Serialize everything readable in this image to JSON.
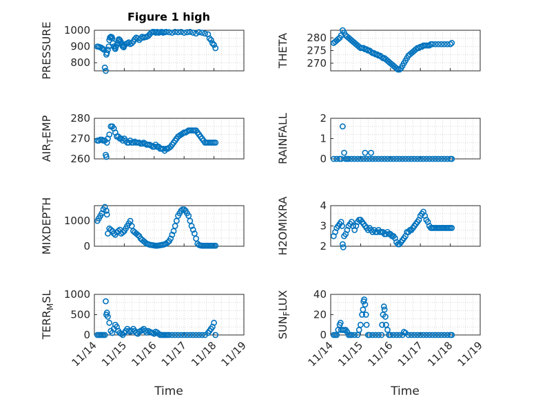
{
  "figure": {
    "title": "Figure 1 high",
    "xlabel": "Time",
    "marker_color": "#0072bd"
  },
  "chart_data": [
    {
      "type": "scatter",
      "ylabel": "PRESSURE",
      "ylabel_sub": "",
      "ylabel_post": "",
      "xlim": [
        0,
        5
      ],
      "ylim": [
        750,
        1000
      ],
      "yticks": [
        800,
        900,
        1000
      ],
      "xticks": [],
      "xtick_labels": [],
      "x": [
        0.1,
        0.15,
        0.2,
        0.25,
        0.28,
        0.32,
        0.35,
        0.38,
        0.4,
        0.42,
        0.45,
        0.48,
        0.5,
        0.52,
        0.55,
        0.58,
        0.6,
        0.62,
        0.65,
        0.68,
        0.7,
        0.72,
        0.75,
        0.78,
        0.8,
        0.82,
        0.85,
        0.88,
        0.9,
        0.93,
        0.95,
        0.98,
        1.0,
        1.05,
        1.1,
        1.15,
        1.2,
        1.25,
        1.3,
        1.35,
        1.4,
        1.45,
        1.5,
        1.55,
        1.6,
        1.65,
        1.7,
        1.75,
        1.8,
        1.85,
        1.9,
        1.95,
        2.0,
        2.05,
        2.1,
        2.15,
        2.2,
        2.25,
        2.3,
        2.35,
        2.4,
        2.5,
        2.6,
        2.7,
        2.8,
        2.9,
        3.0,
        3.1,
        3.2,
        3.3,
        3.4,
        3.5,
        3.6,
        3.7,
        3.8,
        3.85,
        3.9,
        3.95,
        4.0,
        4.05
      ],
      "y": [
        900,
        898,
        895,
        890,
        885,
        880,
        770,
        750,
        850,
        860,
        880,
        900,
        940,
        955,
        960,
        958,
        950,
        920,
        900,
        890,
        885,
        900,
        910,
        920,
        935,
        945,
        940,
        930,
        920,
        910,
        900,
        895,
        905,
        915,
        920,
        925,
        915,
        920,
        930,
        945,
        955,
        950,
        940,
        950,
        960,
        955,
        958,
        960,
        965,
        975,
        985,
        990,
        990,
        985,
        990,
        985,
        988,
        990,
        985,
        988,
        990,
        988,
        985,
        990,
        988,
        990,
        985,
        988,
        990,
        985,
        980,
        988,
        985,
        980,
        975,
        950,
        940,
        920,
        910,
        890
      ]
    },
    {
      "type": "scatter",
      "ylabel": "THETA",
      "ylabel_sub": "",
      "ylabel_post": "",
      "xlim": [
        0,
        5
      ],
      "ylim": [
        267,
        283
      ],
      "yticks": [
        270,
        275,
        280
      ],
      "xticks": [],
      "xtick_labels": [],
      "x": [
        0.1,
        0.15,
        0.2,
        0.25,
        0.3,
        0.35,
        0.4,
        0.45,
        0.5,
        0.55,
        0.6,
        0.65,
        0.7,
        0.75,
        0.8,
        0.85,
        0.9,
        0.95,
        1.0,
        1.05,
        1.1,
        1.15,
        1.2,
        1.25,
        1.3,
        1.35,
        1.4,
        1.45,
        1.5,
        1.55,
        1.6,
        1.65,
        1.7,
        1.75,
        1.8,
        1.85,
        1.9,
        1.95,
        2.0,
        2.05,
        2.1,
        2.15,
        2.2,
        2.25,
        2.3,
        2.35,
        2.4,
        2.45,
        2.5,
        2.55,
        2.6,
        2.65,
        2.7,
        2.75,
        2.8,
        2.85,
        2.9,
        2.95,
        3.0,
        3.05,
        3.1,
        3.15,
        3.2,
        3.25,
        3.3,
        3.35,
        3.4,
        3.5,
        3.6,
        3.7,
        3.8,
        3.9,
        4.0,
        4.05
      ],
      "y": [
        278,
        278.5,
        279,
        279.5,
        280,
        281,
        283,
        282,
        281,
        280.5,
        280,
        279.5,
        279,
        278.5,
        278,
        277.5,
        277,
        276.5,
        276,
        276,
        276,
        275.5,
        275.5,
        275,
        275,
        274.5,
        274,
        274,
        273.5,
        273.5,
        273,
        273,
        272.5,
        272,
        272,
        271.5,
        271,
        270.5,
        270,
        269.5,
        269,
        268.5,
        268,
        267.5,
        267.5,
        268,
        269,
        270,
        271,
        272,
        273,
        273.5,
        274,
        274.5,
        275,
        275.5,
        276,
        276,
        276.5,
        276.5,
        277,
        277,
        277,
        277,
        277,
        277.5,
        277.5,
        277.5,
        277.5,
        277.5,
        277.5,
        277.5,
        277.5,
        278
      ]
    },
    {
      "type": "scatter",
      "ylabel": "AIR",
      "ylabel_sub": "T",
      "ylabel_post": "EMP",
      "xlim": [
        0,
        5
      ],
      "ylim": [
        260,
        280
      ],
      "yticks": [
        260,
        270,
        280
      ],
      "xticks": [],
      "xtick_labels": [],
      "x": [
        0.1,
        0.15,
        0.2,
        0.25,
        0.3,
        0.35,
        0.38,
        0.4,
        0.42,
        0.45,
        0.5,
        0.55,
        0.6,
        0.65,
        0.7,
        0.75,
        0.8,
        0.85,
        0.9,
        0.95,
        1.0,
        1.05,
        1.1,
        1.15,
        1.2,
        1.25,
        1.3,
        1.35,
        1.4,
        1.45,
        1.5,
        1.55,
        1.6,
        1.65,
        1.7,
        1.75,
        1.8,
        1.85,
        1.9,
        1.95,
        2.0,
        2.05,
        2.1,
        2.15,
        2.2,
        2.25,
        2.3,
        2.35,
        2.4,
        2.45,
        2.5,
        2.55,
        2.6,
        2.65,
        2.7,
        2.75,
        2.8,
        2.85,
        2.9,
        2.95,
        3.0,
        3.05,
        3.1,
        3.15,
        3.2,
        3.25,
        3.3,
        3.35,
        3.4,
        3.45,
        3.5,
        3.55,
        3.6,
        3.65,
        3.7,
        3.75,
        3.8,
        3.85,
        3.9,
        3.95,
        4.0,
        4.05
      ],
      "y": [
        269,
        269,
        269.5,
        269.5,
        269,
        269,
        262,
        261,
        268,
        270,
        272,
        276,
        276,
        275,
        273,
        271,
        271,
        270,
        270,
        269,
        270,
        269,
        268,
        268,
        269,
        268,
        268,
        268.5,
        268,
        268,
        268,
        267.5,
        267.5,
        268,
        267.5,
        267,
        267,
        267,
        266.5,
        266,
        266,
        267,
        266,
        266,
        265,
        265,
        265,
        264,
        265,
        265,
        265.5,
        266,
        267,
        268,
        269,
        270,
        271,
        271.5,
        272,
        272.5,
        273,
        273,
        273.5,
        274,
        274,
        274,
        274,
        274,
        274,
        273,
        272,
        271,
        270,
        269,
        268,
        268,
        268,
        268,
        268,
        268,
        268,
        268
      ]
    },
    {
      "type": "scatter",
      "ylabel": "RAINFALL",
      "ylabel_sub": "",
      "ylabel_post": "",
      "xlim": [
        0,
        5
      ],
      "ylim": [
        0,
        2
      ],
      "yticks": [
        0,
        1,
        2
      ],
      "xticks": [],
      "xtick_labels": [],
      "x": [
        0.1,
        0.2,
        0.3,
        0.35,
        0.4,
        0.45,
        0.5,
        0.55,
        0.6,
        0.7,
        0.8,
        0.9,
        1.0,
        1.1,
        1.2,
        1.3,
        1.4,
        1.5,
        1.6,
        1.7,
        1.8,
        1.9,
        2.0,
        2.1,
        2.2,
        2.3,
        2.4,
        2.5,
        2.6,
        2.7,
        2.8,
        2.9,
        3.0,
        3.1,
        3.2,
        3.3,
        3.4,
        3.5,
        3.6,
        3.7,
        3.8,
        3.9,
        4.0,
        4.05,
        1.15,
        1.35
      ],
      "y": [
        0,
        0,
        0,
        0,
        1.6,
        0.3,
        0,
        0,
        0,
        0,
        0,
        0,
        0,
        0,
        0,
        0,
        0,
        0,
        0,
        0,
        0,
        0,
        0,
        0,
        0,
        0,
        0,
        0,
        0,
        0,
        0,
        0,
        0,
        0,
        0,
        0,
        0,
        0,
        0,
        0,
        0,
        0,
        0,
        0,
        0.3,
        0.3
      ]
    },
    {
      "type": "scatter",
      "ylabel": "MIXDEPTH",
      "ylabel_sub": "",
      "ylabel_post": "",
      "xlim": [
        0,
        5
      ],
      "ylim": [
        0,
        1600
      ],
      "yticks": [
        0,
        1000
      ],
      "xticks": [],
      "xtick_labels": [],
      "x": [
        0.1,
        0.15,
        0.2,
        0.25,
        0.3,
        0.35,
        0.4,
        0.42,
        0.45,
        0.5,
        0.55,
        0.6,
        0.65,
        0.7,
        0.75,
        0.8,
        0.85,
        0.9,
        0.95,
        1.0,
        1.05,
        1.1,
        1.15,
        1.2,
        1.25,
        1.3,
        1.35,
        1.4,
        1.45,
        1.5,
        1.55,
        1.6,
        1.65,
        1.7,
        1.75,
        1.8,
        1.85,
        1.9,
        1.95,
        2.0,
        2.05,
        2.1,
        2.15,
        2.2,
        2.25,
        2.3,
        2.35,
        2.4,
        2.45,
        2.5,
        2.55,
        2.6,
        2.65,
        2.7,
        2.75,
        2.8,
        2.85,
        2.9,
        2.95,
        3.0,
        3.05,
        3.1,
        3.15,
        3.2,
        3.25,
        3.3,
        3.35,
        3.4,
        3.45,
        3.5,
        3.55,
        3.6,
        3.65,
        3.7,
        3.75,
        3.8,
        3.85,
        3.9,
        3.95,
        4.0,
        4.05
      ],
      "y": [
        1000,
        1100,
        1200,
        1300,
        1450,
        1550,
        1400,
        1250,
        500,
        700,
        650,
        600,
        500,
        450,
        550,
        600,
        650,
        500,
        550,
        600,
        700,
        800,
        900,
        1000,
        800,
        600,
        550,
        500,
        450,
        400,
        300,
        250,
        200,
        150,
        100,
        80,
        60,
        50,
        40,
        30,
        20,
        20,
        30,
        40,
        50,
        60,
        80,
        100,
        150,
        200,
        300,
        450,
        600,
        800,
        1000,
        1200,
        1300,
        1400,
        1450,
        1450,
        1400,
        1300,
        1200,
        1000,
        800,
        650,
        500,
        300,
        100,
        50,
        30,
        20,
        20,
        20,
        20,
        20,
        20,
        20,
        20,
        20,
        20
      ]
    },
    {
      "type": "scatter",
      "ylabel": "H2OMIXRA",
      "ylabel_sub": "",
      "ylabel_post": "",
      "xlim": [
        0,
        5
      ],
      "ylim": [
        2,
        4
      ],
      "yticks": [
        2,
        3,
        4
      ],
      "xticks": [],
      "xtick_labels": [],
      "x": [
        0.1,
        0.15,
        0.2,
        0.25,
        0.3,
        0.35,
        0.38,
        0.4,
        0.42,
        0.45,
        0.5,
        0.55,
        0.6,
        0.65,
        0.7,
        0.75,
        0.8,
        0.85,
        0.9,
        0.95,
        1.0,
        1.05,
        1.1,
        1.15,
        1.2,
        1.25,
        1.3,
        1.35,
        1.4,
        1.45,
        1.5,
        1.55,
        1.6,
        1.65,
        1.7,
        1.75,
        1.8,
        1.85,
        1.9,
        1.95,
        2.0,
        2.05,
        2.1,
        2.15,
        2.2,
        2.25,
        2.3,
        2.35,
        2.4,
        2.45,
        2.5,
        2.55,
        2.6,
        2.65,
        2.7,
        2.75,
        2.8,
        2.85,
        2.9,
        2.95,
        3.0,
        3.05,
        3.1,
        3.15,
        3.2,
        3.25,
        3.3,
        3.35,
        3.4,
        3.45,
        3.5,
        3.55,
        3.6,
        3.65,
        3.7,
        3.75,
        3.8,
        3.85,
        3.9,
        3.95,
        4.0,
        4.05
      ],
      "y": [
        2.5,
        2.7,
        2.9,
        3.0,
        3.1,
        3.2,
        3.0,
        2.1,
        1.95,
        2.5,
        2.6,
        2.8,
        3.0,
        3.1,
        3.2,
        3.0,
        2.8,
        3.0,
        3.2,
        3.3,
        3.3,
        3.2,
        3.1,
        3.0,
        2.9,
        2.8,
        2.9,
        2.8,
        2.7,
        2.8,
        2.7,
        2.7,
        2.8,
        2.7,
        2.7,
        2.7,
        2.6,
        2.6,
        2.7,
        2.6,
        2.6,
        2.5,
        2.5,
        2.4,
        2.2,
        2.1,
        2.1,
        2.2,
        2.3,
        2.4,
        2.5,
        2.7,
        2.7,
        2.8,
        2.8,
        2.9,
        3.0,
        3.1,
        3.2,
        3.3,
        3.5,
        3.6,
        3.7,
        3.5,
        3.3,
        3.2,
        3.0,
        2.9,
        2.9,
        2.9,
        2.9,
        2.9,
        2.9,
        2.9,
        2.9,
        2.9,
        2.9,
        2.9,
        2.9,
        2.9,
        2.9,
        2.9
      ]
    },
    {
      "type": "scatter",
      "ylabel": "TERR",
      "ylabel_sub": "M",
      "ylabel_post": "SL",
      "xlim": [
        0,
        5
      ],
      "ylim": [
        0,
        1000
      ],
      "yticks": [
        0,
        500,
        1000
      ],
      "xticks": [
        0,
        1,
        2,
        3,
        4,
        5
      ],
      "xtick_labels": [
        "11/14",
        "11/15",
        "11/16",
        "11/17",
        "11/18",
        "11/19"
      ],
      "x": [
        0.1,
        0.15,
        0.2,
        0.25,
        0.3,
        0.35,
        0.38,
        0.4,
        0.42,
        0.45,
        0.5,
        0.55,
        0.6,
        0.65,
        0.7,
        0.75,
        0.8,
        0.85,
        0.9,
        0.95,
        1.0,
        1.05,
        1.1,
        1.15,
        1.2,
        1.25,
        1.3,
        1.35,
        1.4,
        1.45,
        1.5,
        1.55,
        1.6,
        1.65,
        1.7,
        1.75,
        1.8,
        1.85,
        1.9,
        1.95,
        2.0,
        2.05,
        2.1,
        2.15,
        2.2,
        2.25,
        2.3,
        2.35,
        2.4,
        2.45,
        2.5,
        2.6,
        2.7,
        2.8,
        2.9,
        3.0,
        3.1,
        3.2,
        3.3,
        3.4,
        3.5,
        3.6,
        3.7,
        3.8,
        3.85,
        3.9,
        3.95,
        4.0,
        4.05
      ],
      "y": [
        0,
        0,
        0,
        0,
        0,
        0,
        830,
        500,
        550,
        450,
        300,
        100,
        50,
        150,
        250,
        200,
        100,
        50,
        30,
        0,
        50,
        100,
        150,
        100,
        80,
        100,
        150,
        100,
        50,
        30,
        80,
        100,
        120,
        150,
        100,
        60,
        100,
        80,
        60,
        50,
        30,
        80,
        60,
        30,
        0,
        0,
        0,
        0,
        0,
        0,
        0,
        0,
        0,
        0,
        0,
        0,
        0,
        0,
        0,
        0,
        0,
        0,
        0,
        50,
        100,
        150,
        200,
        300,
        0
      ]
    },
    {
      "type": "scatter",
      "ylabel": "SUN",
      "ylabel_sub": "F",
      "ylabel_post": "LUX",
      "xlim": [
        0,
        5
      ],
      "ylim": [
        0,
        40
      ],
      "yticks": [
        0,
        20,
        40
      ],
      "xticks": [
        0,
        1,
        2,
        3,
        4,
        5
      ],
      "xtick_labels": [
        "11/14",
        "11/15",
        "11/16",
        "11/17",
        "11/18",
        "11/19"
      ],
      "x": [
        0.1,
        0.15,
        0.2,
        0.25,
        0.3,
        0.33,
        0.35,
        0.4,
        0.45,
        0.5,
        0.55,
        0.6,
        0.65,
        0.7,
        0.8,
        0.9,
        0.95,
        1.0,
        1.05,
        1.08,
        1.1,
        1.12,
        1.15,
        1.18,
        1.2,
        1.25,
        1.3,
        1.4,
        1.5,
        1.6,
        1.7,
        1.72,
        1.75,
        1.78,
        1.8,
        1.83,
        1.85,
        1.9,
        1.95,
        2.0,
        2.1,
        2.2,
        2.3,
        2.4,
        2.45,
        2.5,
        2.6,
        2.7,
        2.8,
        2.9,
        3.0,
        3.1,
        3.2,
        3.3,
        3.4,
        3.5,
        3.6,
        3.7,
        3.8,
        3.9,
        4.0,
        4.05
      ],
      "y": [
        0,
        0,
        0,
        5,
        10,
        12,
        5,
        5,
        5,
        5,
        3,
        0,
        0,
        0,
        0,
        0,
        5,
        10,
        20,
        25,
        33,
        35,
        30,
        20,
        10,
        0,
        0,
        0,
        0,
        0,
        0,
        10,
        20,
        28,
        25,
        18,
        10,
        5,
        0,
        0,
        0,
        0,
        0,
        0,
        3,
        2,
        0,
        0,
        0,
        0,
        0,
        0,
        0,
        0,
        0,
        0,
        0,
        0,
        0,
        0,
        0,
        0
      ]
    }
  ]
}
